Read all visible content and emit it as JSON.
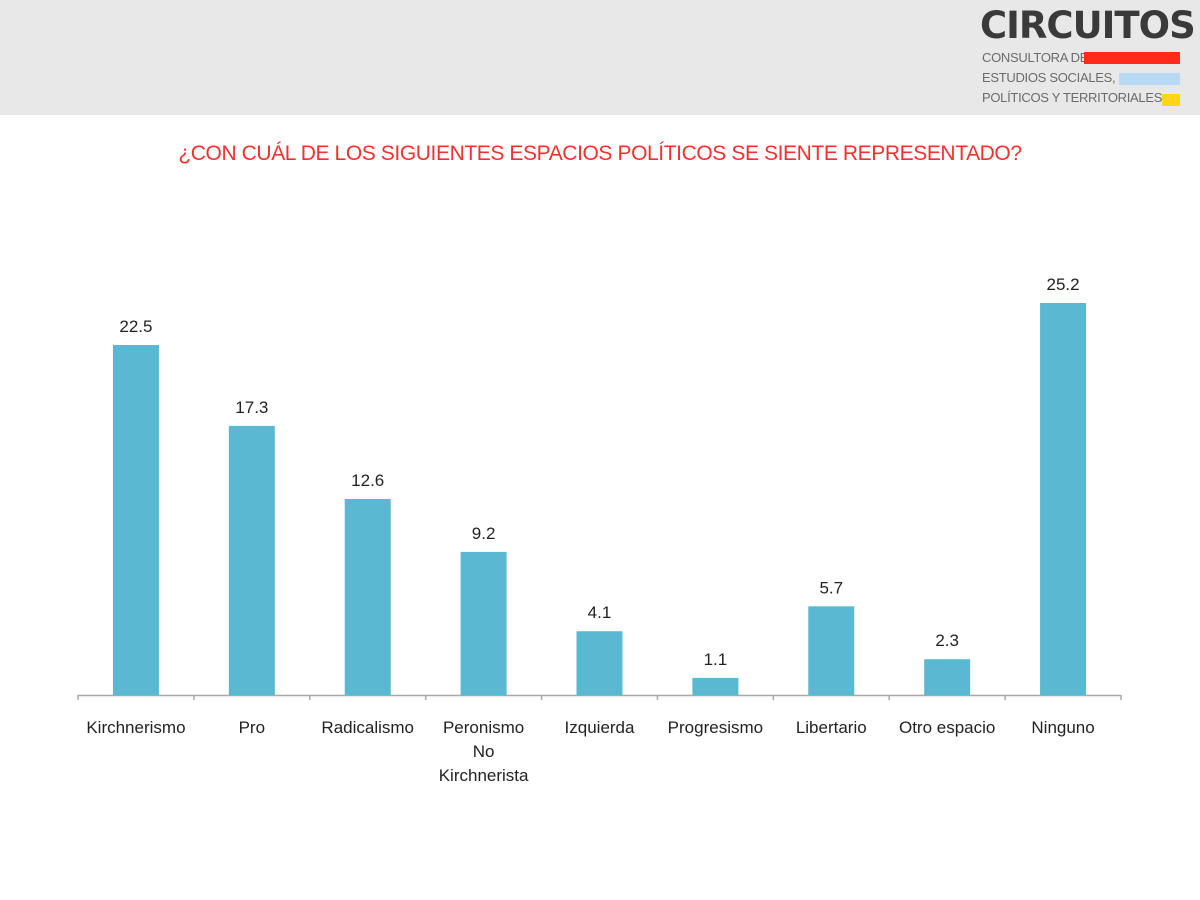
{
  "header": {
    "logo": {
      "name": "CIRCUITOS",
      "lines": [
        "CONSULTORA DE",
        "ESTUDIOS SOCIALES,",
        "POLÍTICOS Y TERRITORIALES"
      ],
      "stripe_colors": [
        "#ff2a1a",
        "#b7d9f4",
        "#ffd51a"
      ]
    }
  },
  "chart_data": {
    "type": "bar",
    "title": "¿CON CUÁL DE LOS SIGUIENTES ESPACIOS POLÍTICOS SE SIENTE REPRESENTADO?",
    "categories": [
      "Kirchnerismo",
      "Pro",
      "Radicalismo",
      "Peronismo No Kirchnerista",
      "Izquierda",
      "Progresismo",
      "Libertario",
      "Otro espacio",
      "Ninguno"
    ],
    "category_lines": [
      [
        "Kirchnerismo"
      ],
      [
        "Pro"
      ],
      [
        "Radicalismo"
      ],
      [
        "Peronismo",
        "No",
        "Kirchnerista"
      ],
      [
        "Izquierda"
      ],
      [
        "Progresismo"
      ],
      [
        "Libertario"
      ],
      [
        "Otro espacio"
      ],
      [
        "Ninguno"
      ]
    ],
    "values": [
      22.5,
      17.3,
      12.6,
      9.2,
      4.1,
      1.1,
      5.7,
      2.3,
      25.2
    ],
    "value_labels": [
      "22.5",
      "17.3",
      "12.6",
      "9.2",
      "4.1",
      "1.1",
      "5.7",
      "2.3",
      "25.2"
    ],
    "xlabel": "",
    "ylabel": "",
    "ylim": [
      0,
      26
    ],
    "grid": false,
    "legend": "none",
    "colors": {
      "bar": "#5ab9d2",
      "axis": "#a8a8a8",
      "title": "#f2312f"
    }
  }
}
